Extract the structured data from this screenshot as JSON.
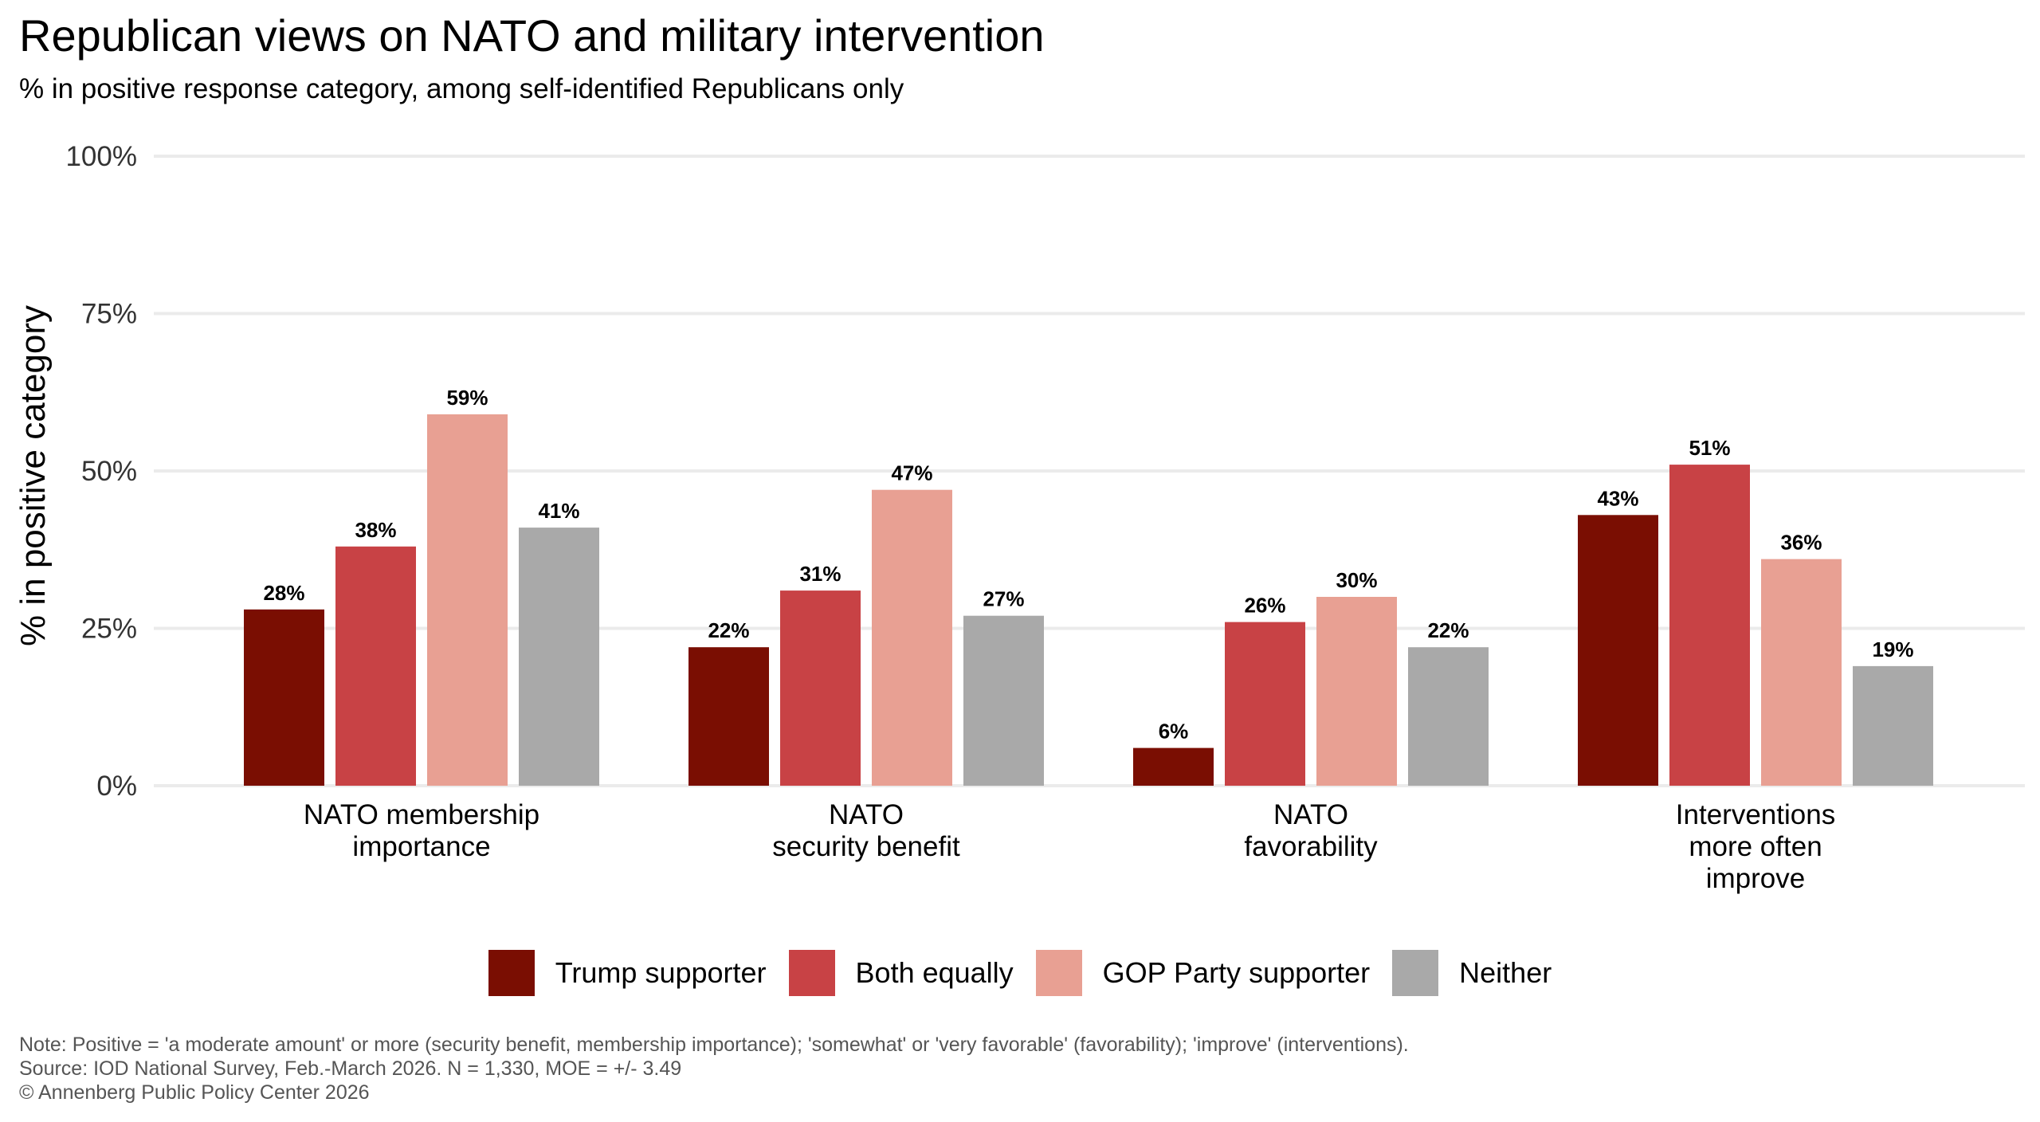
{
  "title": "Republican views on NATO and military intervention",
  "subtitle": "% in positive response category, among self-identified Republicans only",
  "caption": {
    "note": "Note: Positive = 'a moderate amount' or more (security benefit, membership importance); 'somewhat' or 'very favorable' (favorability); 'improve' (interventions).",
    "source": "Source: IOD National Survey, Feb.-March 2026. N = 1,330, MOE = +/- 3.49",
    "copyright": "© Annenberg Public Policy Center 2026"
  },
  "chart_data": {
    "type": "bar",
    "title": "Republican views on NATO and military intervention",
    "subtitle": "% in positive response category, among self-identified Republicans only",
    "xlabel": "",
    "ylabel": "% in positive category",
    "ylim": [
      0,
      100
    ],
    "yticks": [
      0,
      25,
      50,
      75,
      100
    ],
    "ytick_labels": [
      "0%",
      "25%",
      "50%",
      "75%",
      "100%"
    ],
    "grid": "horizontal",
    "legend_position": "bottom",
    "categories": [
      [
        "NATO membership",
        "importance"
      ],
      [
        "NATO",
        "security benefit"
      ],
      [
        "NATO",
        "favorability"
      ],
      [
        "Interventions",
        "more often",
        "improve"
      ]
    ],
    "series": [
      {
        "name": "Trump supporter",
        "color": "#7a0e02",
        "values": [
          28,
          22,
          6,
          43
        ]
      },
      {
        "name": "Both equally",
        "color": "#c84245",
        "values": [
          38,
          31,
          26,
          51
        ]
      },
      {
        "name": "GOP Party supporter",
        "color": "#e8a093",
        "values": [
          59,
          47,
          30,
          36
        ]
      },
      {
        "name": "Neither",
        "color": "#a9a9a9",
        "values": [
          41,
          27,
          22,
          19
        ]
      }
    ],
    "value_label_suffix": "%"
  }
}
